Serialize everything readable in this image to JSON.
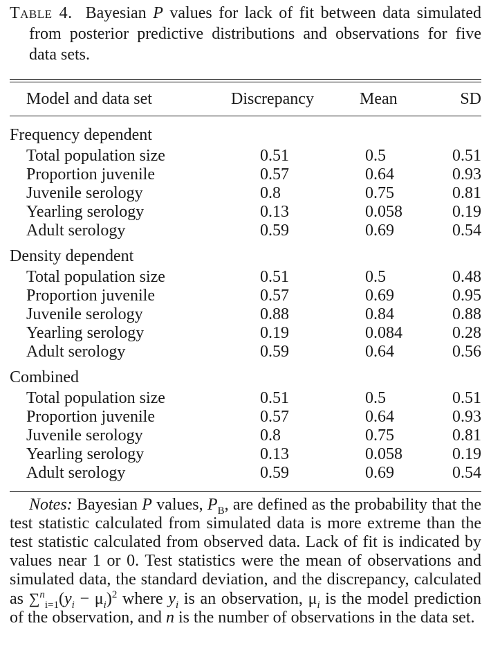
{
  "caption": {
    "label": "Table 4.",
    "text_before": "Bayesian ",
    "p_symbol": "P",
    "text_after": " values for lack of fit between data simulated from posterior predictive distributions and observations for five data sets."
  },
  "columns": [
    "Model and data set",
    "Discrepancy",
    "Mean",
    "SD"
  ],
  "groups": [
    {
      "name": "Frequency dependent",
      "rows": [
        {
          "name": "Total population size",
          "discrepancy": "0.51",
          "mean": "0.5",
          "sd": "0.51"
        },
        {
          "name": "Proportion juvenile",
          "discrepancy": "0.57",
          "mean": "0.64",
          "sd": "0.93"
        },
        {
          "name": "Juvenile serology",
          "discrepancy": "0.8",
          "mean": "0.75",
          "sd": "0.81"
        },
        {
          "name": "Yearling serology",
          "discrepancy": "0.13",
          "mean": "0.058",
          "sd": "0.19"
        },
        {
          "name": "Adult serology",
          "discrepancy": "0.59",
          "mean": "0.69",
          "sd": "0.54"
        }
      ]
    },
    {
      "name": "Density dependent",
      "rows": [
        {
          "name": "Total population size",
          "discrepancy": "0.51",
          "mean": "0.5",
          "sd": "0.48"
        },
        {
          "name": "Proportion juvenile",
          "discrepancy": "0.57",
          "mean": "0.69",
          "sd": "0.95"
        },
        {
          "name": "Juvenile serology",
          "discrepancy": "0.88",
          "mean": "0.84",
          "sd": "0.88"
        },
        {
          "name": "Yearling serology",
          "discrepancy": "0.19",
          "mean": "0.084",
          "sd": "0.28"
        },
        {
          "name": "Adult serology",
          "discrepancy": "0.59",
          "mean": "0.64",
          "sd": "0.56"
        }
      ]
    },
    {
      "name": "Combined",
      "rows": [
        {
          "name": "Total population size",
          "discrepancy": "0.51",
          "mean": "0.5",
          "sd": "0.51"
        },
        {
          "name": "Proportion juvenile",
          "discrepancy": "0.57",
          "mean": "0.64",
          "sd": "0.93"
        },
        {
          "name": "Juvenile serology",
          "discrepancy": "0.8",
          "mean": "0.75",
          "sd": "0.81"
        },
        {
          "name": "Yearling serology",
          "discrepancy": "0.13",
          "mean": "0.058",
          "sd": "0.19"
        },
        {
          "name": "Adult serology",
          "discrepancy": "0.59",
          "mean": "0.69",
          "sd": "0.54"
        }
      ]
    }
  ],
  "notes": {
    "label": "Notes:",
    "t1": " Bayesian ",
    "p": "P",
    "t2": " values, ",
    "pb_sub": "B",
    "t3": ", are defined as the probability that the test statistic calculated from simulated data is more extreme than the test statistic calculated from observed data. Lack of fit is indicated by values near 1 or 0. Test statistics were the mean of observations and simulated data, the standard deviation, and the discrepancy, calculated as ",
    "sum_symbol": "∑",
    "sum_sub": "i=1",
    "sum_sup": "n",
    "formula_open": "(",
    "y": "y",
    "i": "i",
    "minus": " − ",
    "mu": "μ",
    "formula_close": ")",
    "square": "2",
    "t4": " where ",
    "t5": " is an observation, ",
    "t6": " is the model prediction of the observation, and ",
    "n": "n",
    "t7": " is the number of observations in the data set."
  }
}
